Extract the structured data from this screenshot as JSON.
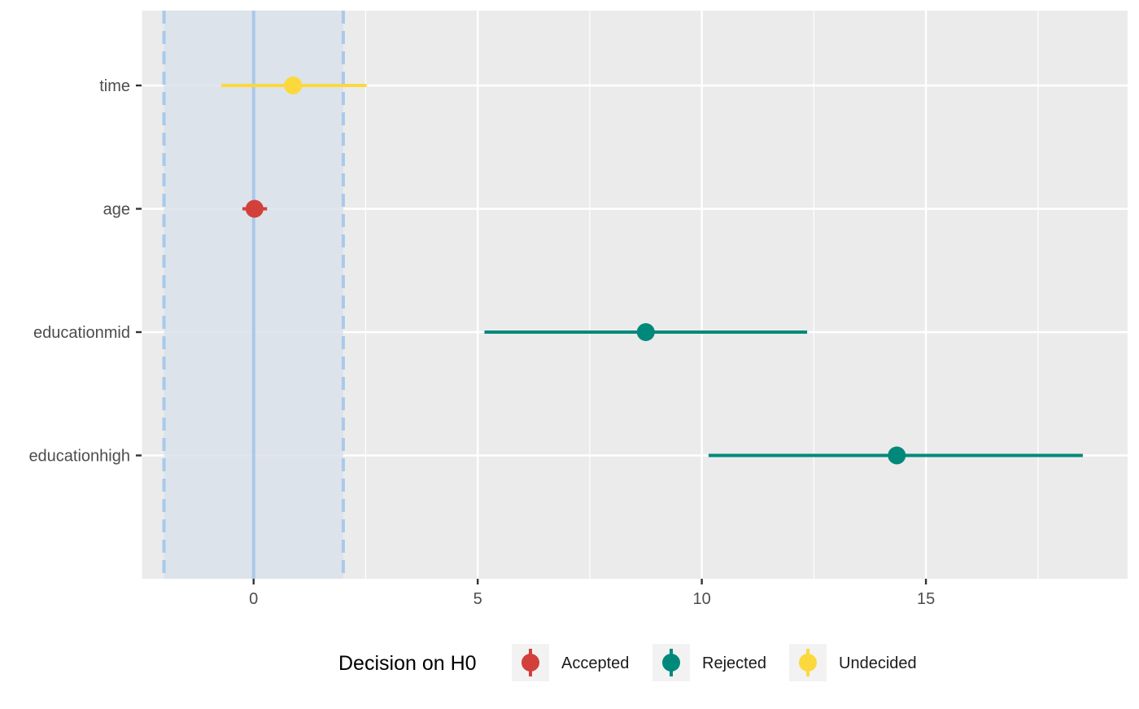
{
  "chart_data": {
    "type": "forest",
    "title": "",
    "xlabel": "",
    "ylabel": "",
    "xlim": [
      -2.5,
      19.5
    ],
    "x_ticks": [
      0,
      5,
      10,
      15
    ],
    "x_tick_labels": [
      "0",
      "5",
      "10",
      "15"
    ],
    "rope": {
      "low": -2,
      "high": 2,
      "center": 0
    },
    "categories": [
      "time",
      "age",
      "educationmid",
      "educationhigh"
    ],
    "series": [
      {
        "term": "time",
        "estimate": 0.88,
        "low": -0.72,
        "high": 2.52,
        "decision": "Undecided"
      },
      {
        "term": "age",
        "estimate": 0.02,
        "low": -0.25,
        "high": 0.3,
        "decision": "Accepted"
      },
      {
        "term": "educationmid",
        "estimate": 8.75,
        "low": 5.15,
        "high": 12.35,
        "decision": "Rejected"
      },
      {
        "term": "educationhigh",
        "estimate": 14.35,
        "low": 10.15,
        "high": 18.5,
        "decision": "Rejected"
      }
    ],
    "grid": true,
    "legend": {
      "position": "bottom",
      "title": "Decision on H0",
      "items": [
        {
          "label": "Accepted",
          "color": "#d33f3a"
        },
        {
          "label": "Rejected",
          "color": "#00897b"
        },
        {
          "label": "Undecided",
          "color": "#fbd93d"
        }
      ]
    }
  },
  "colors": {
    "panel": "#ebebeb",
    "grid": "#ffffff",
    "rope_fill": "#dae2ea",
    "rope_line": "#a9c9ea",
    "Accepted": "#d33f3a",
    "Rejected": "#00897b",
    "Undecided": "#fbd93d"
  }
}
